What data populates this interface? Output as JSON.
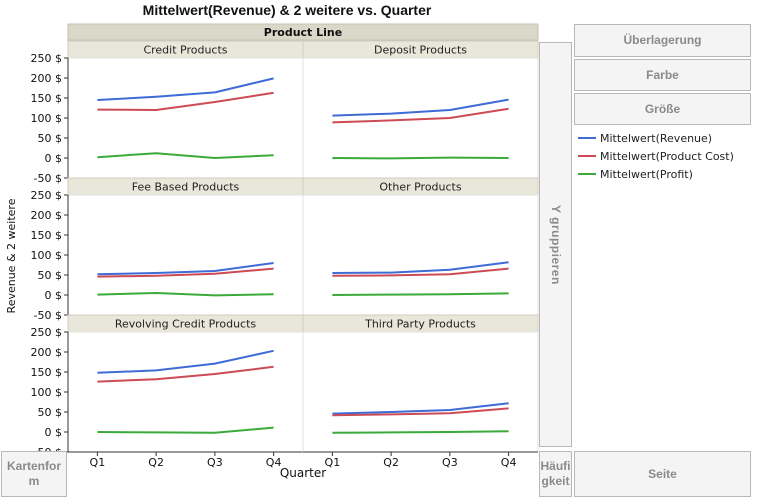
{
  "chart_data": {
    "type": "line",
    "title": "Mittelwert(Revenue) & 2 weitere vs. Quarter",
    "group_label": "Product Line",
    "xlabel": "Quarter",
    "ylabel": "Revenue & 2 weitere",
    "categories": [
      "Q1",
      "Q2",
      "Q3",
      "Q4"
    ],
    "ylim": [
      -50,
      250
    ],
    "yticks": [
      "250 $",
      "200 $",
      "150 $",
      "100 $",
      "50 $",
      "0 $",
      "-50 $"
    ],
    "ytick_values": [
      250,
      200,
      150,
      100,
      50,
      0,
      -50
    ],
    "grid": false,
    "legend_position": "right",
    "series_styles": [
      {
        "name": "Mittelwert(Revenue)",
        "color": "#3f6bd6"
      },
      {
        "name": "Mittelwert(Product Cost)",
        "color": "#cc4b55"
      },
      {
        "name": "Mittelwert(Profit)",
        "color": "#3aaa3a"
      }
    ],
    "panels": [
      {
        "title": "Credit Products",
        "series": [
          {
            "name": "Mittelwert(Revenue)",
            "values": [
              145,
              153,
              164,
              199
            ]
          },
          {
            "name": "Mittelwert(Product Cost)",
            "values": [
              121,
              120,
              140,
              163
            ]
          },
          {
            "name": "Mittelwert(Profit)",
            "values": [
              2,
              12,
              0,
              7
            ]
          }
        ]
      },
      {
        "title": "Deposit Products",
        "series": [
          {
            "name": "Mittelwert(Revenue)",
            "values": [
              106,
              111,
              120,
              146
            ]
          },
          {
            "name": "Mittelwert(Product Cost)",
            "values": [
              89,
              94,
              100,
              123
            ]
          },
          {
            "name": "Mittelwert(Profit)",
            "values": [
              0,
              -1,
              1,
              0
            ]
          }
        ]
      },
      {
        "title": "Fee Based Products",
        "series": [
          {
            "name": "Mittelwert(Revenue)",
            "values": [
              52,
              55,
              60,
              80
            ]
          },
          {
            "name": "Mittelwert(Product Cost)",
            "values": [
              46,
              48,
              53,
              66
            ]
          },
          {
            "name": "Mittelwert(Profit)",
            "values": [
              1,
              5,
              -1,
              2
            ]
          }
        ]
      },
      {
        "title": "Other Products",
        "series": [
          {
            "name": "Mittelwert(Revenue)",
            "values": [
              55,
              56,
              63,
              82
            ]
          },
          {
            "name": "Mittelwert(Product Cost)",
            "values": [
              48,
              49,
              52,
              66
            ]
          },
          {
            "name": "Mittelwert(Profit)",
            "values": [
              0,
              1,
              2,
              4
            ]
          }
        ]
      },
      {
        "title": "Revolving Credit Products",
        "series": [
          {
            "name": "Mittelwert(Revenue)",
            "values": [
              148,
              154,
              171,
              203
            ]
          },
          {
            "name": "Mittelwert(Product Cost)",
            "values": [
              126,
              132,
              145,
              163
            ]
          },
          {
            "name": "Mittelwert(Profit)",
            "values": [
              0,
              -1,
              -2,
              11
            ]
          }
        ]
      },
      {
        "title": "Third Party Products",
        "series": [
          {
            "name": "Mittelwert(Revenue)",
            "values": [
              46,
              50,
              55,
              72
            ]
          },
          {
            "name": "Mittelwert(Product Cost)",
            "values": [
              42,
              44,
              47,
              59
            ]
          },
          {
            "name": "Mittelwert(Profit)",
            "values": [
              -2,
              -1,
              0,
              2
            ]
          }
        ]
      }
    ]
  },
  "drop_zones": {
    "overlay": "Überlagerung",
    "color": "Farbe",
    "size": "Größe",
    "group_y": "Y gruppieren",
    "map_shape": "Kartenform",
    "frequency": "Häufigkeit",
    "page": "Seite"
  }
}
